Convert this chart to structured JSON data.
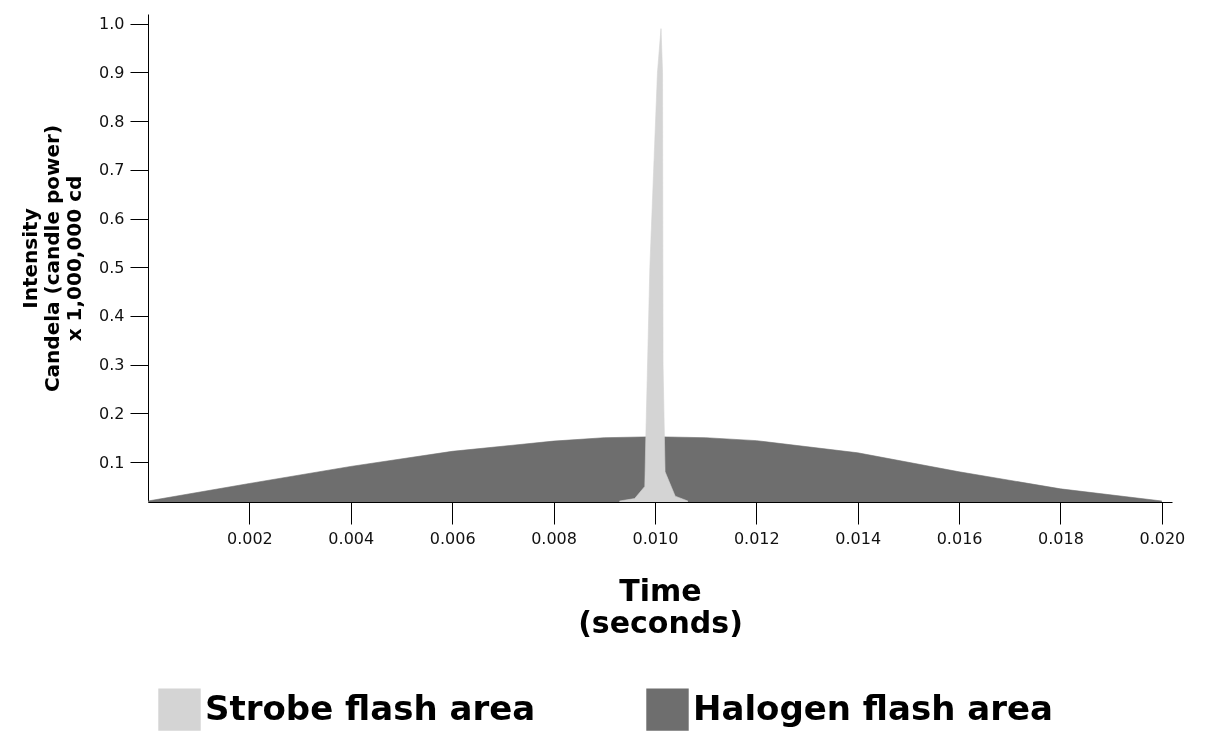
{
  "chart_data": {
    "type": "area",
    "xlabel": "Time\n(seconds)",
    "ylabel": "Intensity\nCandela (candle power)\nx 1,000,000 cd",
    "xlim": [
      0,
      0.0202
    ],
    "ylim": [
      0.018,
      1.02
    ],
    "xticks": [
      {
        "value": 0.002,
        "label": "0.002"
      },
      {
        "value": 0.004,
        "label": "0.004"
      },
      {
        "value": 0.006,
        "label": "0.006"
      },
      {
        "value": 0.008,
        "label": "0.008"
      },
      {
        "value": 0.01,
        "label": "0.010"
      },
      {
        "value": 0.012,
        "label": "0.012"
      },
      {
        "value": 0.014,
        "label": "0.014"
      },
      {
        "value": 0.016,
        "label": "0.016"
      },
      {
        "value": 0.018,
        "label": "0.018"
      },
      {
        "value": 0.02,
        "label": "0.020"
      }
    ],
    "yticks": [
      {
        "value": 0.1,
        "label": "0.1"
      },
      {
        "value": 0.2,
        "label": "0.2"
      },
      {
        "value": 0.3,
        "label": "0.3"
      },
      {
        "value": 0.4,
        "label": "0.4"
      },
      {
        "value": 0.5,
        "label": "0.5"
      },
      {
        "value": 0.6,
        "label": "0.6"
      },
      {
        "value": 0.7,
        "label": "0.7"
      },
      {
        "value": 0.8,
        "label": "0.8"
      },
      {
        "value": 0.9,
        "label": "0.9"
      },
      {
        "value": 1,
        "label": "1.0"
      }
    ],
    "grid": false,
    "legend": "bottom",
    "series": [
      {
        "name": "Strobe flash area",
        "color": "#d4d4d4",
        "x": [
          0.0093,
          0.0096,
          0.0098,
          0.00982,
          0.0099,
          0.01005,
          0.01012,
          0.01015,
          0.01016,
          0.0102,
          0.0104,
          0.01065
        ],
        "values": [
          0.02,
          0.025,
          0.05,
          0.15,
          0.5,
          0.9,
          0.99,
          0.9,
          0.3,
          0.08,
          0.03,
          0.02
        ]
      },
      {
        "name": "Halogen flash area",
        "color": "#6e6e6e",
        "x": [
          0,
          0.002,
          0.004,
          0.006,
          0.008,
          0.009,
          0.01,
          0.011,
          0.012,
          0.014,
          0.016,
          0.018,
          0.02
        ],
        "values": [
          0.02,
          0.056,
          0.091,
          0.122,
          0.143,
          0.15,
          0.152,
          0.15,
          0.144,
          0.119,
          0.08,
          0.045,
          0.02
        ]
      }
    ]
  }
}
